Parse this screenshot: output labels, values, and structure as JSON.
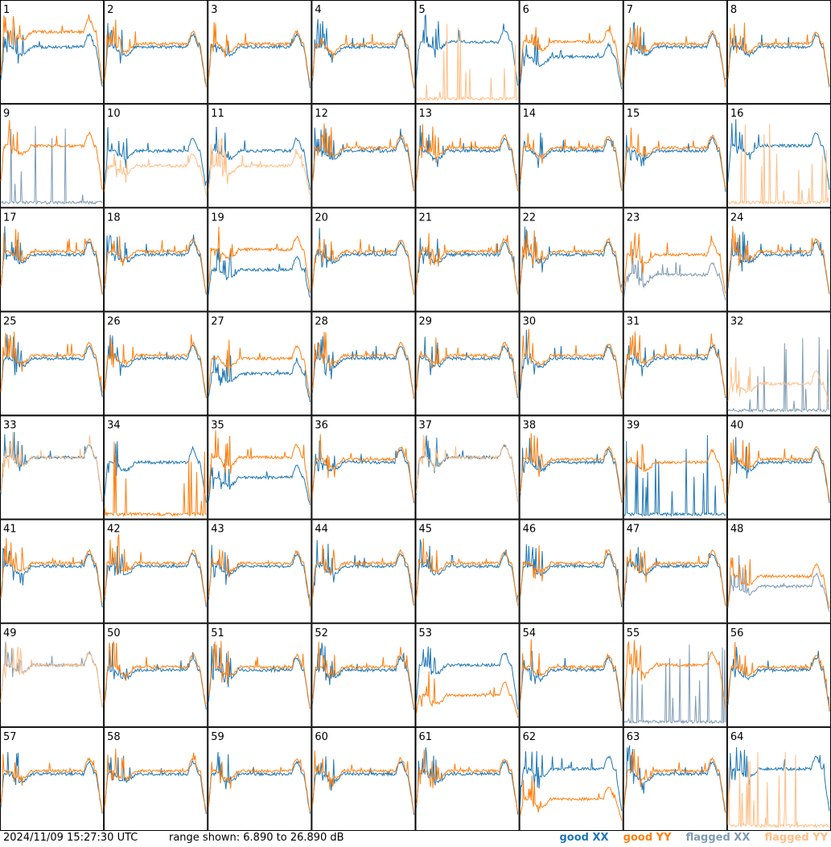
{
  "footer": {
    "timestamp": "2024/11/09 15:27:30 UTC",
    "range_text": "range shown: 6.890 to 26.890 dB"
  },
  "legend": [
    {
      "label": "good XX",
      "color": "#1f77b4"
    },
    {
      "label": "good YY",
      "color": "#ff7f0e"
    },
    {
      "label": "flagged XX",
      "color": "#7f9bb4"
    },
    {
      "label": "flagged YY",
      "color": "#ffbf87"
    }
  ],
  "chart_data": {
    "type": "line",
    "description_units": "dB",
    "ylim": [
      6.89,
      26.89
    ],
    "grid": "8x8 small multiples",
    "panel_labels": [
      "1",
      "2",
      "3",
      "4",
      "5",
      "6",
      "7",
      "8",
      "9",
      "10",
      "11",
      "12",
      "13",
      "14",
      "15",
      "16",
      "17",
      "18",
      "19",
      "20",
      "21",
      "22",
      "23",
      "24",
      "25",
      "26",
      "27",
      "28",
      "29",
      "30",
      "31",
      "32",
      "33",
      "34",
      "35",
      "36",
      "37",
      "38",
      "39",
      "40",
      "41",
      "42",
      "43",
      "44",
      "45",
      "46",
      "47",
      "48",
      "49",
      "50",
      "51",
      "52",
      "53",
      "54",
      "55",
      "56",
      "57",
      "58",
      "59",
      "60",
      "61",
      "62",
      "63",
      "64"
    ],
    "panels": {
      "1": {
        "xx": "good",
        "yy": "good",
        "xx_level": 0.55,
        "yy_level": 0.7
      },
      "5": {
        "xx": "good",
        "yy": "flagged",
        "xx_level": 0.6,
        "yy_level": 0.05
      },
      "6": {
        "xx": "good",
        "yy": "good",
        "xx_level": 0.45,
        "yy_level": 0.6
      },
      "9": {
        "xx": "flagged",
        "yy": "good",
        "xx_level": 0.05,
        "yy_level": 0.6
      },
      "10": {
        "xx": "good",
        "yy": "flagged",
        "xx_level": 0.55,
        "yy_level": 0.4
      },
      "11": {
        "xx": "good",
        "yy": "flagged",
        "xx_level": 0.55,
        "yy_level": 0.4
      },
      "16": {
        "xx": "good",
        "yy": "flagged",
        "xx_level": 0.6,
        "yy_level": 0.05
      },
      "19": {
        "xx": "good",
        "yy": "good",
        "xx_level": 0.4,
        "yy_level": 0.6
      },
      "23": {
        "xx": "flagged",
        "yy": "good",
        "xx_level": 0.35,
        "yy_level": 0.55
      },
      "27": {
        "xx": "good",
        "yy": "good",
        "xx_level": 0.4,
        "yy_level": 0.55
      },
      "32": {
        "xx": "flagged",
        "yy": "flagged",
        "xx_level": 0.05,
        "yy_level": 0.3
      },
      "33": {
        "xx": "good",
        "yy": "flagged",
        "xx_level": 0.6,
        "yy_level": 0.6
      },
      "34": {
        "xx": "good",
        "yy": "good",
        "xx_level": 0.55,
        "yy_level": 0.02
      },
      "35": {
        "xx": "good",
        "yy": "good",
        "xx_level": 0.4,
        "yy_level": 0.6
      },
      "37": {
        "xx": "good",
        "yy": "flagged",
        "xx_level": 0.6,
        "yy_level": 0.6
      },
      "39": {
        "xx": "good",
        "yy": "good",
        "xx_level": 0.02,
        "yy_level": 0.55
      },
      "48": {
        "xx": "flagged",
        "yy": "good",
        "xx_level": 0.35,
        "yy_level": 0.45
      },
      "49": {
        "xx": "flagged",
        "yy": "flagged",
        "xx_level": 0.6,
        "yy_level": 0.6
      },
      "53": {
        "xx": "good",
        "yy": "good",
        "xx_level": 0.6,
        "yy_level": 0.3
      },
      "55": {
        "xx": "flagged",
        "yy": "good",
        "xx_level": 0.05,
        "yy_level": 0.6
      },
      "62": {
        "xx": "good",
        "yy": "good",
        "xx_level": 0.6,
        "yy_level": 0.3
      },
      "64": {
        "xx": "good",
        "yy": "flagged",
        "xx_level": 0.6,
        "yy_level": 0.05
      }
    }
  }
}
